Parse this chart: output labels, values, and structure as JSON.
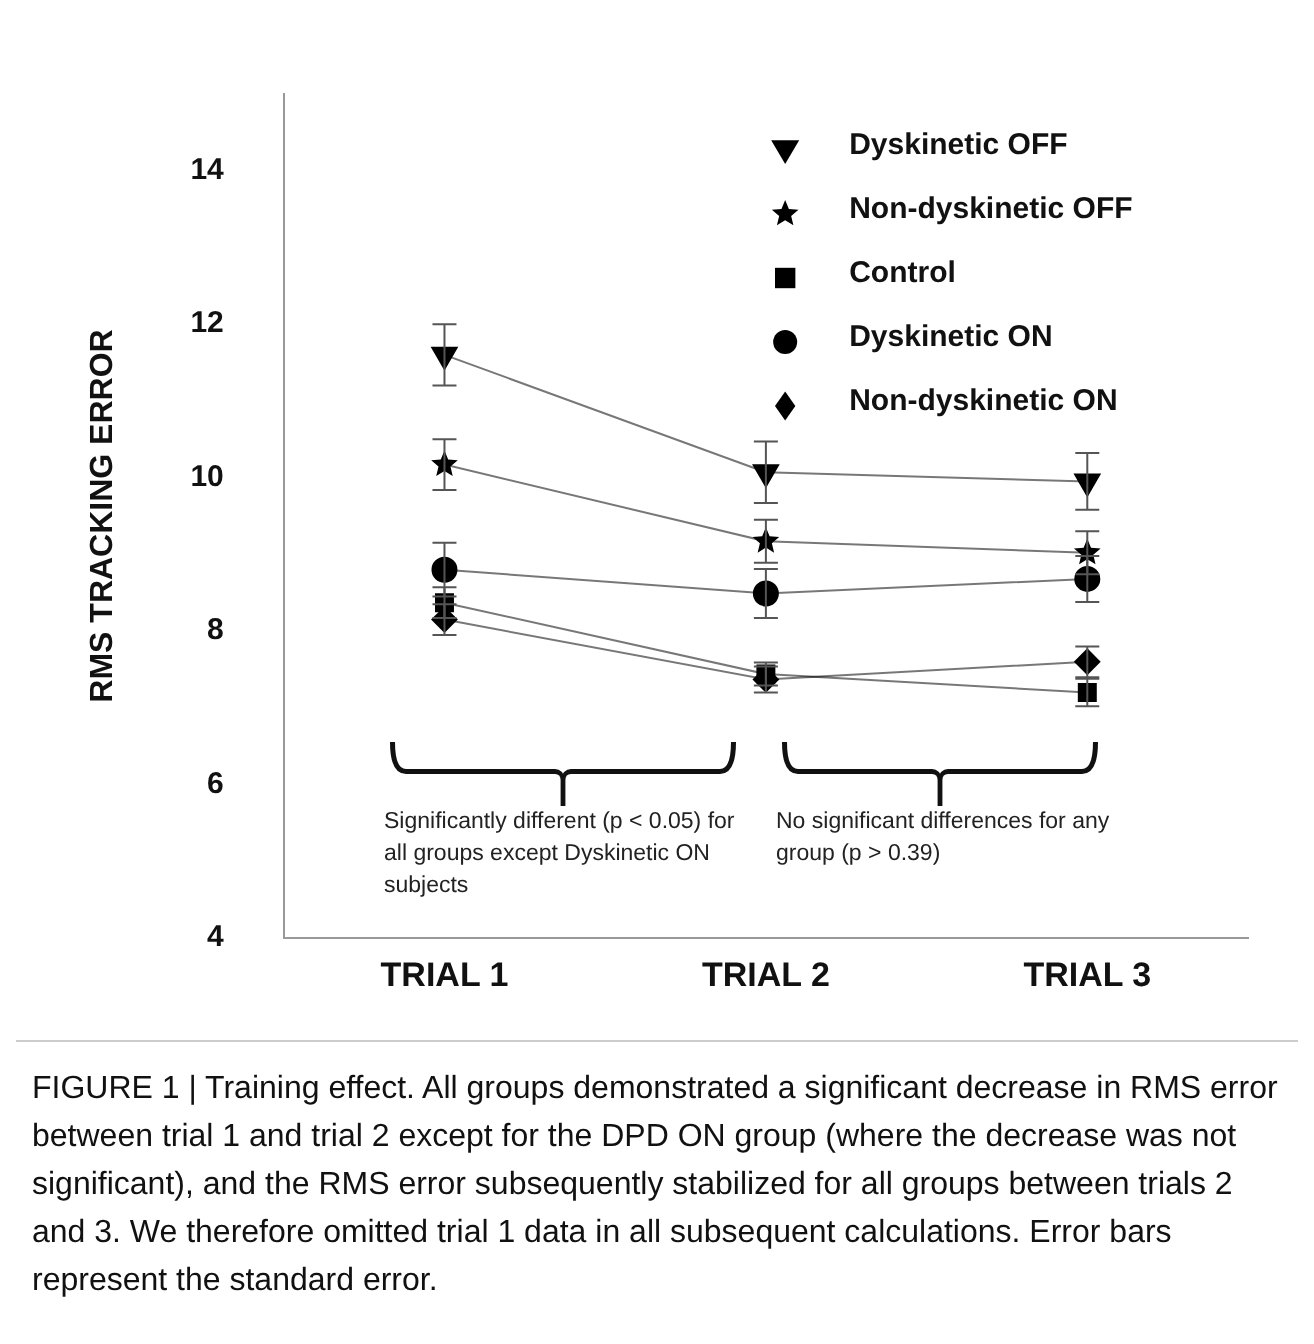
{
  "chart_data": {
    "type": "line",
    "ylabel": "RMS TRACKING ERROR",
    "categories": [
      "TRIAL 1",
      "TRIAL 2",
      "TRIAL 3"
    ],
    "series": [
      {
        "name": "Dyskinetic OFF",
        "color": "#000000",
        "marker": "triangle",
        "values": [
          11.6,
          10.07,
          9.95
        ],
        "errors": [
          0.4,
          0.4,
          0.37
        ]
      },
      {
        "name": "Non-dyskinetic OFF",
        "color": "#000000",
        "marker": "star",
        "values": [
          10.17,
          9.17,
          9.02
        ],
        "errors": [
          0.33,
          0.28,
          0.28
        ]
      },
      {
        "name": "Control",
        "color": "#000000",
        "marker": "square",
        "values": [
          8.37,
          7.44,
          7.2
        ],
        "errors": [
          0.2,
          0.15,
          0.18
        ]
      },
      {
        "name": "Dyskinetic ON",
        "color": "#000000",
        "marker": "circle",
        "values": [
          8.8,
          8.49,
          8.68
        ],
        "errors": [
          0.35,
          0.32,
          0.3
        ]
      },
      {
        "name": "Non-dyskinetic ON",
        "color": "#000000",
        "marker": "diamond",
        "values": [
          8.15,
          7.37,
          7.6
        ],
        "errors": [
          0.2,
          0.17,
          0.2
        ]
      }
    ],
    "ylim": [
      4,
      15
    ],
    "yticks": [
      4,
      6,
      8,
      10,
      12,
      14
    ],
    "grid": false,
    "legend": "top right",
    "annotations": [
      "Significantly different (p < 0.05) for all groups except Dyskinetic ON subjects",
      "No significant differences for any group (p > 0.39)",
      "FIGURE 1 | Training effect. All groups demonstrated a significant decrease in RMS error between trial 1 and trial 2 except for the DPD ON group (where the decrease was not significant), and the RMS error subsequently stabilized for all groups between trials 2 and 3. We therefore omitted trial 1 data in all subsequent calculations. Error bars represent the standard error."
    ]
  }
}
